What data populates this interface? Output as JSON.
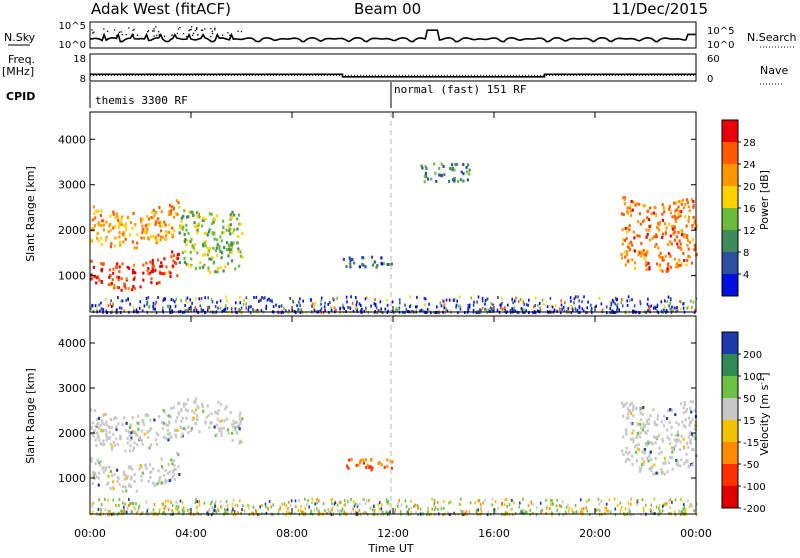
{
  "header": {
    "radar_title": "Adak West (fitACF)",
    "beam": "Beam 00",
    "date": "11/Dec/2015"
  },
  "panels": {
    "nsky": {
      "left_label": "N.Sky",
      "left_ticks": [
        "10^5",
        "10^0"
      ],
      "right_ticks": [
        "10^5",
        "10^0"
      ],
      "right_label": "N.Search"
    },
    "freq": {
      "left_label": "Freq.",
      "left_unit": "[MHz]",
      "left_ticks": [
        "18",
        "8"
      ],
      "right_ticks": [
        "60",
        "0"
      ],
      "right_label": "Nave"
    },
    "cpid": {
      "label": "CPID",
      "programs": [
        "themis 3300 RF",
        "normal (fast) 151 RF"
      ]
    }
  },
  "axes": {
    "x_label": "Time UT",
    "x_ticks": [
      "00:00",
      "04:00",
      "08:00",
      "12:00",
      "16:00",
      "20:00",
      "00:00"
    ],
    "y_label": "Slant Range [km]",
    "y_ticks": [
      "1000",
      "2000",
      "3000",
      "4000"
    ]
  },
  "colorbars": {
    "power": {
      "label": "Power [dB]",
      "ticks": [
        "28",
        "24",
        "20",
        "16",
        "12",
        "8",
        "4"
      ],
      "colors": [
        "#e8000b",
        "#ff5a00",
        "#ff9600",
        "#ffd200",
        "#6dbb3c",
        "#3e8a5a",
        "#2e4fa0",
        "#0010e0"
      ]
    },
    "velocity": {
      "label_main": "Velocity [m s",
      "label_sup": "-1",
      "label_end": "]",
      "ticks": [
        "200",
        "100",
        "50",
        "15",
        "-15",
        "-50",
        "-100",
        "-200"
      ],
      "colors": [
        "#1e3aa8",
        "#2f8a55",
        "#6cc144",
        "#c8c8c8",
        "#f2c200",
        "#ff8c00",
        "#ff3000",
        "#e00000"
      ]
    }
  },
  "chart_data": [
    {
      "type": "line",
      "title": "N.Sky / N.Search",
      "x": [
        "00:00",
        "04:00",
        "08:00",
        "12:00",
        "13:30",
        "16:00",
        "20:00",
        "24:00"
      ],
      "series": [
        {
          "name": "N.Sky",
          "values": [
            100,
            200,
            80,
            60,
            5000,
            80,
            100,
            400
          ]
        }
      ],
      "ylim": [
        1,
        100000
      ],
      "log_y": true
    },
    {
      "type": "line",
      "title": "Freq. / Nave",
      "x": [
        "00:00",
        "10:00",
        "10:00",
        "18:00",
        "18:00",
        "24:00"
      ],
      "series": [
        {
          "name": "Freq.",
          "values": [
            10.5,
            10.5,
            9.4,
            9.4,
            10.5,
            10.5
          ]
        },
        {
          "name": "Nave",
          "values": [
            10,
            10,
            10,
            10,
            10,
            10
          ]
        }
      ],
      "ylim": [
        8,
        18
      ]
    },
    {
      "type": "heatmap",
      "title": "Power",
      "x_range_hours": [
        0,
        24
      ],
      "y_range_km": [
        200,
        4600
      ],
      "regions": [
        {
          "t": [
            0,
            3.5
          ],
          "r": [
            900,
            1500
          ],
          "value": 26
        },
        {
          "t": [
            0,
            3.5
          ],
          "r": [
            1800,
            2600
          ],
          "value": 20
        },
        {
          "t": [
            3.5,
            6
          ],
          "r": [
            1300,
            2600
          ],
          "value": 12
        },
        {
          "t": [
            10,
            12
          ],
          "r": [
            1200,
            1450
          ],
          "value": 6
        },
        {
          "t": [
            13,
            15
          ],
          "r": [
            3100,
            3500
          ],
          "value": 8
        },
        {
          "t": [
            21,
            24
          ],
          "r": [
            1300,
            2800
          ],
          "value": 22
        }
      ]
    },
    {
      "type": "heatmap",
      "title": "Velocity",
      "x_range_hours": [
        0,
        24
      ],
      "y_range_km": [
        200,
        4600
      ],
      "regions": [
        {
          "t": [
            0,
            3.5
          ],
          "r": [
            900,
            1500
          ],
          "value": 0
        },
        {
          "t": [
            0,
            6
          ],
          "r": [
            1800,
            2600
          ],
          "value": 0
        },
        {
          "t": [
            10,
            12
          ],
          "r": [
            1200,
            1450
          ],
          "value": -60
        },
        {
          "t": [
            21,
            24
          ],
          "r": [
            1300,
            2800
          ],
          "value": 0
        }
      ]
    }
  ]
}
